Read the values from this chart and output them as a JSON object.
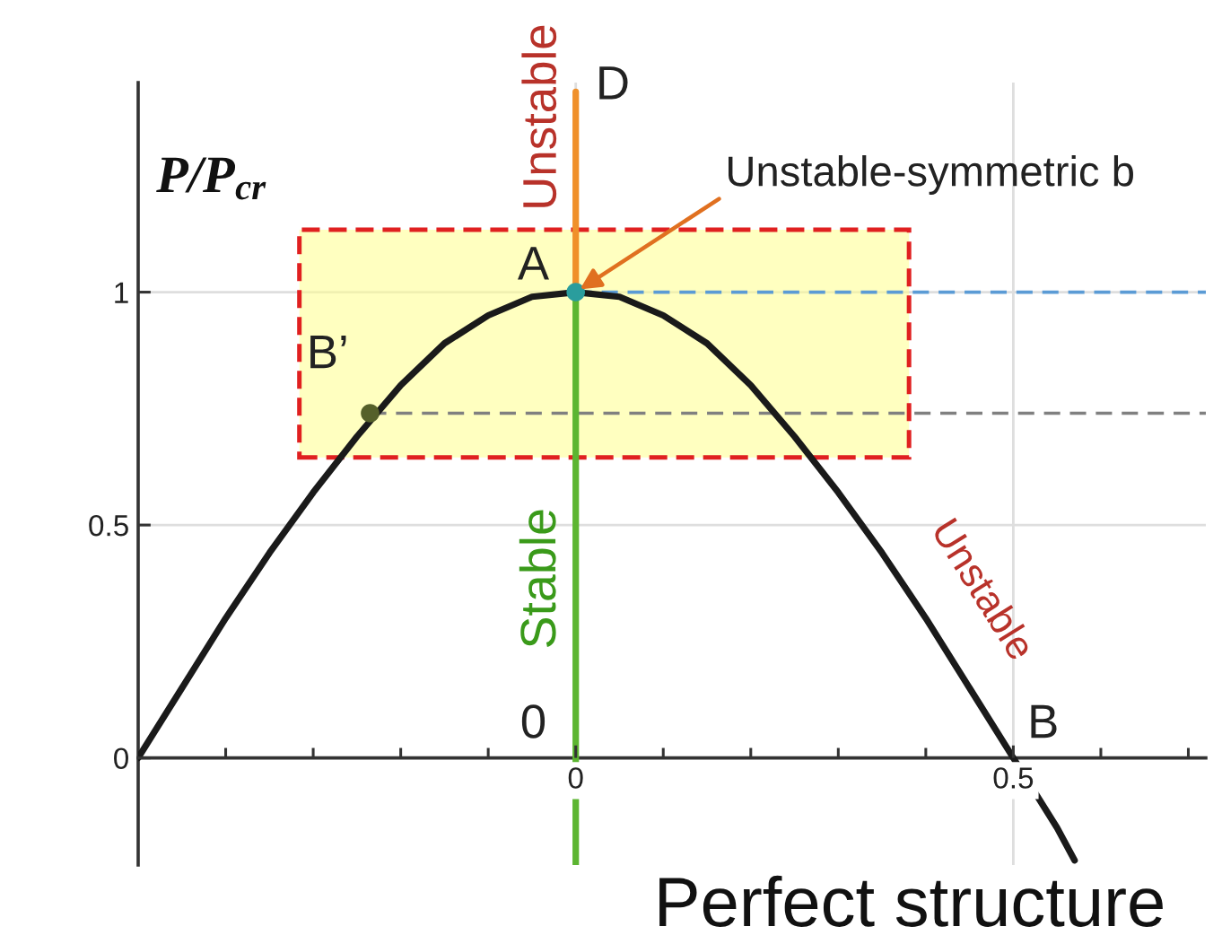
{
  "chart_data": {
    "type": "line",
    "ylabel": "P/P$_{cr}$",
    "xlim": [
      -0.5,
      0.72
    ],
    "ylim": [
      -0.23,
      1.45
    ],
    "xticks": [
      {
        "value": -0.4,
        "label": null
      },
      {
        "value": -0.3,
        "label": null
      },
      {
        "value": -0.2,
        "label": null
      },
      {
        "value": -0.1,
        "label": null
      },
      0,
      {
        "value": 0.1,
        "label": null
      },
      {
        "value": 0.2,
        "label": null
      },
      {
        "value": 0.3,
        "label": null
      },
      {
        "value": 0.4,
        "label": null
      },
      0.5,
      {
        "value": 0.6,
        "label": null
      },
      {
        "value": 0.7,
        "label": null
      }
    ],
    "yticks": [
      0,
      0.5,
      1
    ],
    "grid": true,
    "series": [
      {
        "type": "line",
        "color": "#1a1a1a",
        "x": [
          -0.5,
          -0.45,
          -0.4,
          -0.35,
          -0.3,
          -0.25,
          -0.2,
          -0.15,
          -0.1,
          -0.05,
          0,
          0.05,
          0.1,
          0.15,
          0.2,
          0.25,
          0.3,
          0.35,
          0.4,
          0.45,
          0.5,
          0.55,
          0.57
        ],
        "values": [
          0,
          0.15,
          0.3,
          0.44,
          0.57,
          0.69,
          0.8,
          0.89,
          0.95,
          0.99,
          1,
          0.99,
          0.95,
          0.89,
          0.8,
          0.69,
          0.57,
          0.44,
          0.3,
          0.15,
          0,
          -0.15,
          -0.22
        ]
      },
      {
        "type": "line",
        "name": "Stable",
        "color": "#5cb531",
        "x": [
          0,
          0
        ],
        "values": [
          -0.23,
          1
        ]
      },
      {
        "type": "line",
        "name": "Unstable",
        "color": "#f0902a",
        "x": [
          0,
          0
        ],
        "values": [
          1,
          1.43
        ]
      },
      {
        "type": "line",
        "color": "#5b9bd5",
        "line_style": "dashed",
        "x": [
          0,
          0.72
        ],
        "values": [
          1,
          1
        ]
      },
      {
        "type": "line",
        "color": "#808080",
        "line_style": "dashed",
        "x": [
          -0.235,
          0.72
        ],
        "values": [
          0.74,
          0.74
        ]
      },
      {
        "type": "scatter",
        "marker": "circle",
        "colors": [
          "#2a9d9d",
          "#55602a"
        ],
        "x": [
          0,
          -0.235
        ],
        "values": [
          1,
          0.74
        ]
      }
    ],
    "annotations": [
      {
        "text": "D",
        "x": 0,
        "y": 1.43
      },
      {
        "text": "A",
        "x": 0,
        "y": 1
      },
      {
        "text": "B’",
        "x": -0.235,
        "y": 0.74
      },
      {
        "text": "B",
        "x": 0.5,
        "y": 0
      },
      {
        "text": "0",
        "x": 0,
        "y": 0
      },
      {
        "text": "Unstable",
        "x": 0.4,
        "y": 0.3
      },
      {
        "text": "Unstable-symmetric b",
        "x": 0,
        "y": 1
      },
      "Perfect structure"
    ]
  }
}
